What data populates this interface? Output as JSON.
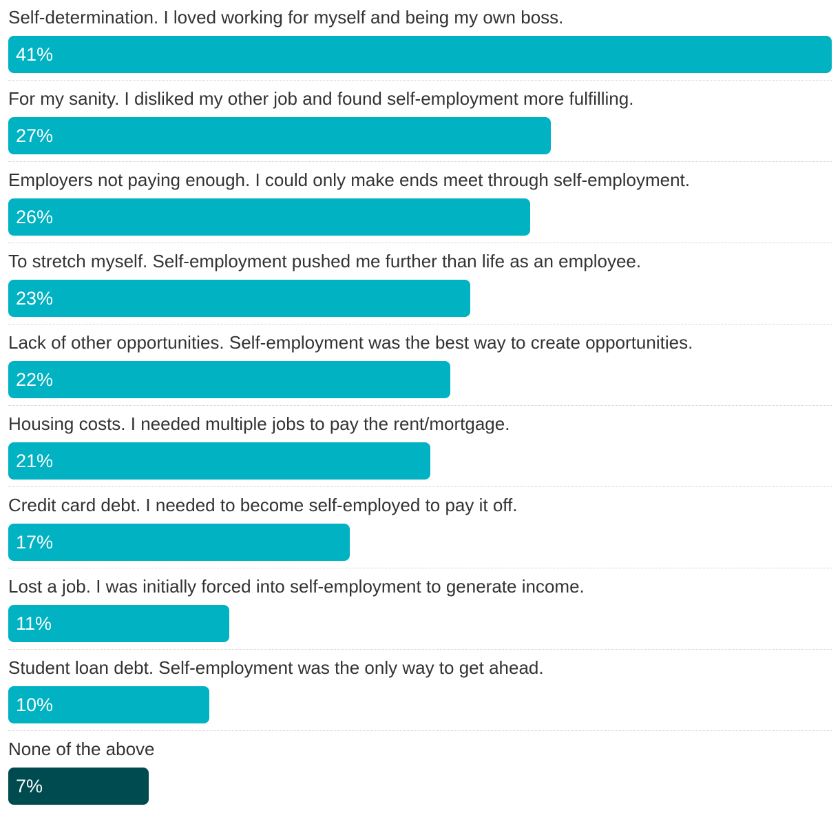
{
  "chart_data": {
    "type": "bar",
    "orientation": "horizontal",
    "categories": [
      "Self-determination. I loved working for myself and being my own boss.",
      "For my sanity. I disliked my other job and found self-employment more fulfilling.",
      "Employers not paying enough. I could only make ends meet through self-employment.",
      "To stretch myself. Self-employment pushed me further than life as an employee.",
      "Lack of other opportunities. Self-employment was the best way to create opportunities.",
      "Housing costs. I needed multiple jobs to pay the rent/mortgage.",
      "Credit card debt. I needed to become self-employed to pay it off.",
      "Lost a job. I was initially forced into self-employment to generate income.",
      "Student loan debt. Self-employment was the only way to get ahead.",
      "None of the above"
    ],
    "values": [
      41,
      27,
      26,
      23,
      22,
      21,
      17,
      11,
      10,
      7
    ],
    "value_labels": [
      "41%",
      "27%",
      "26%",
      "23%",
      "22%",
      "21%",
      "17%",
      "11%",
      "10%",
      "7%"
    ],
    "unit": "%",
    "xlim": [
      0,
      41
    ],
    "grid": false,
    "legend": "none",
    "colors": {
      "bar": "#00b2c2",
      "highlight_bar": "#004b4f",
      "label_text": "#333333",
      "value_text": "#ffffff",
      "divider": "#cfcfcf"
    },
    "highlight_index": 9
  }
}
